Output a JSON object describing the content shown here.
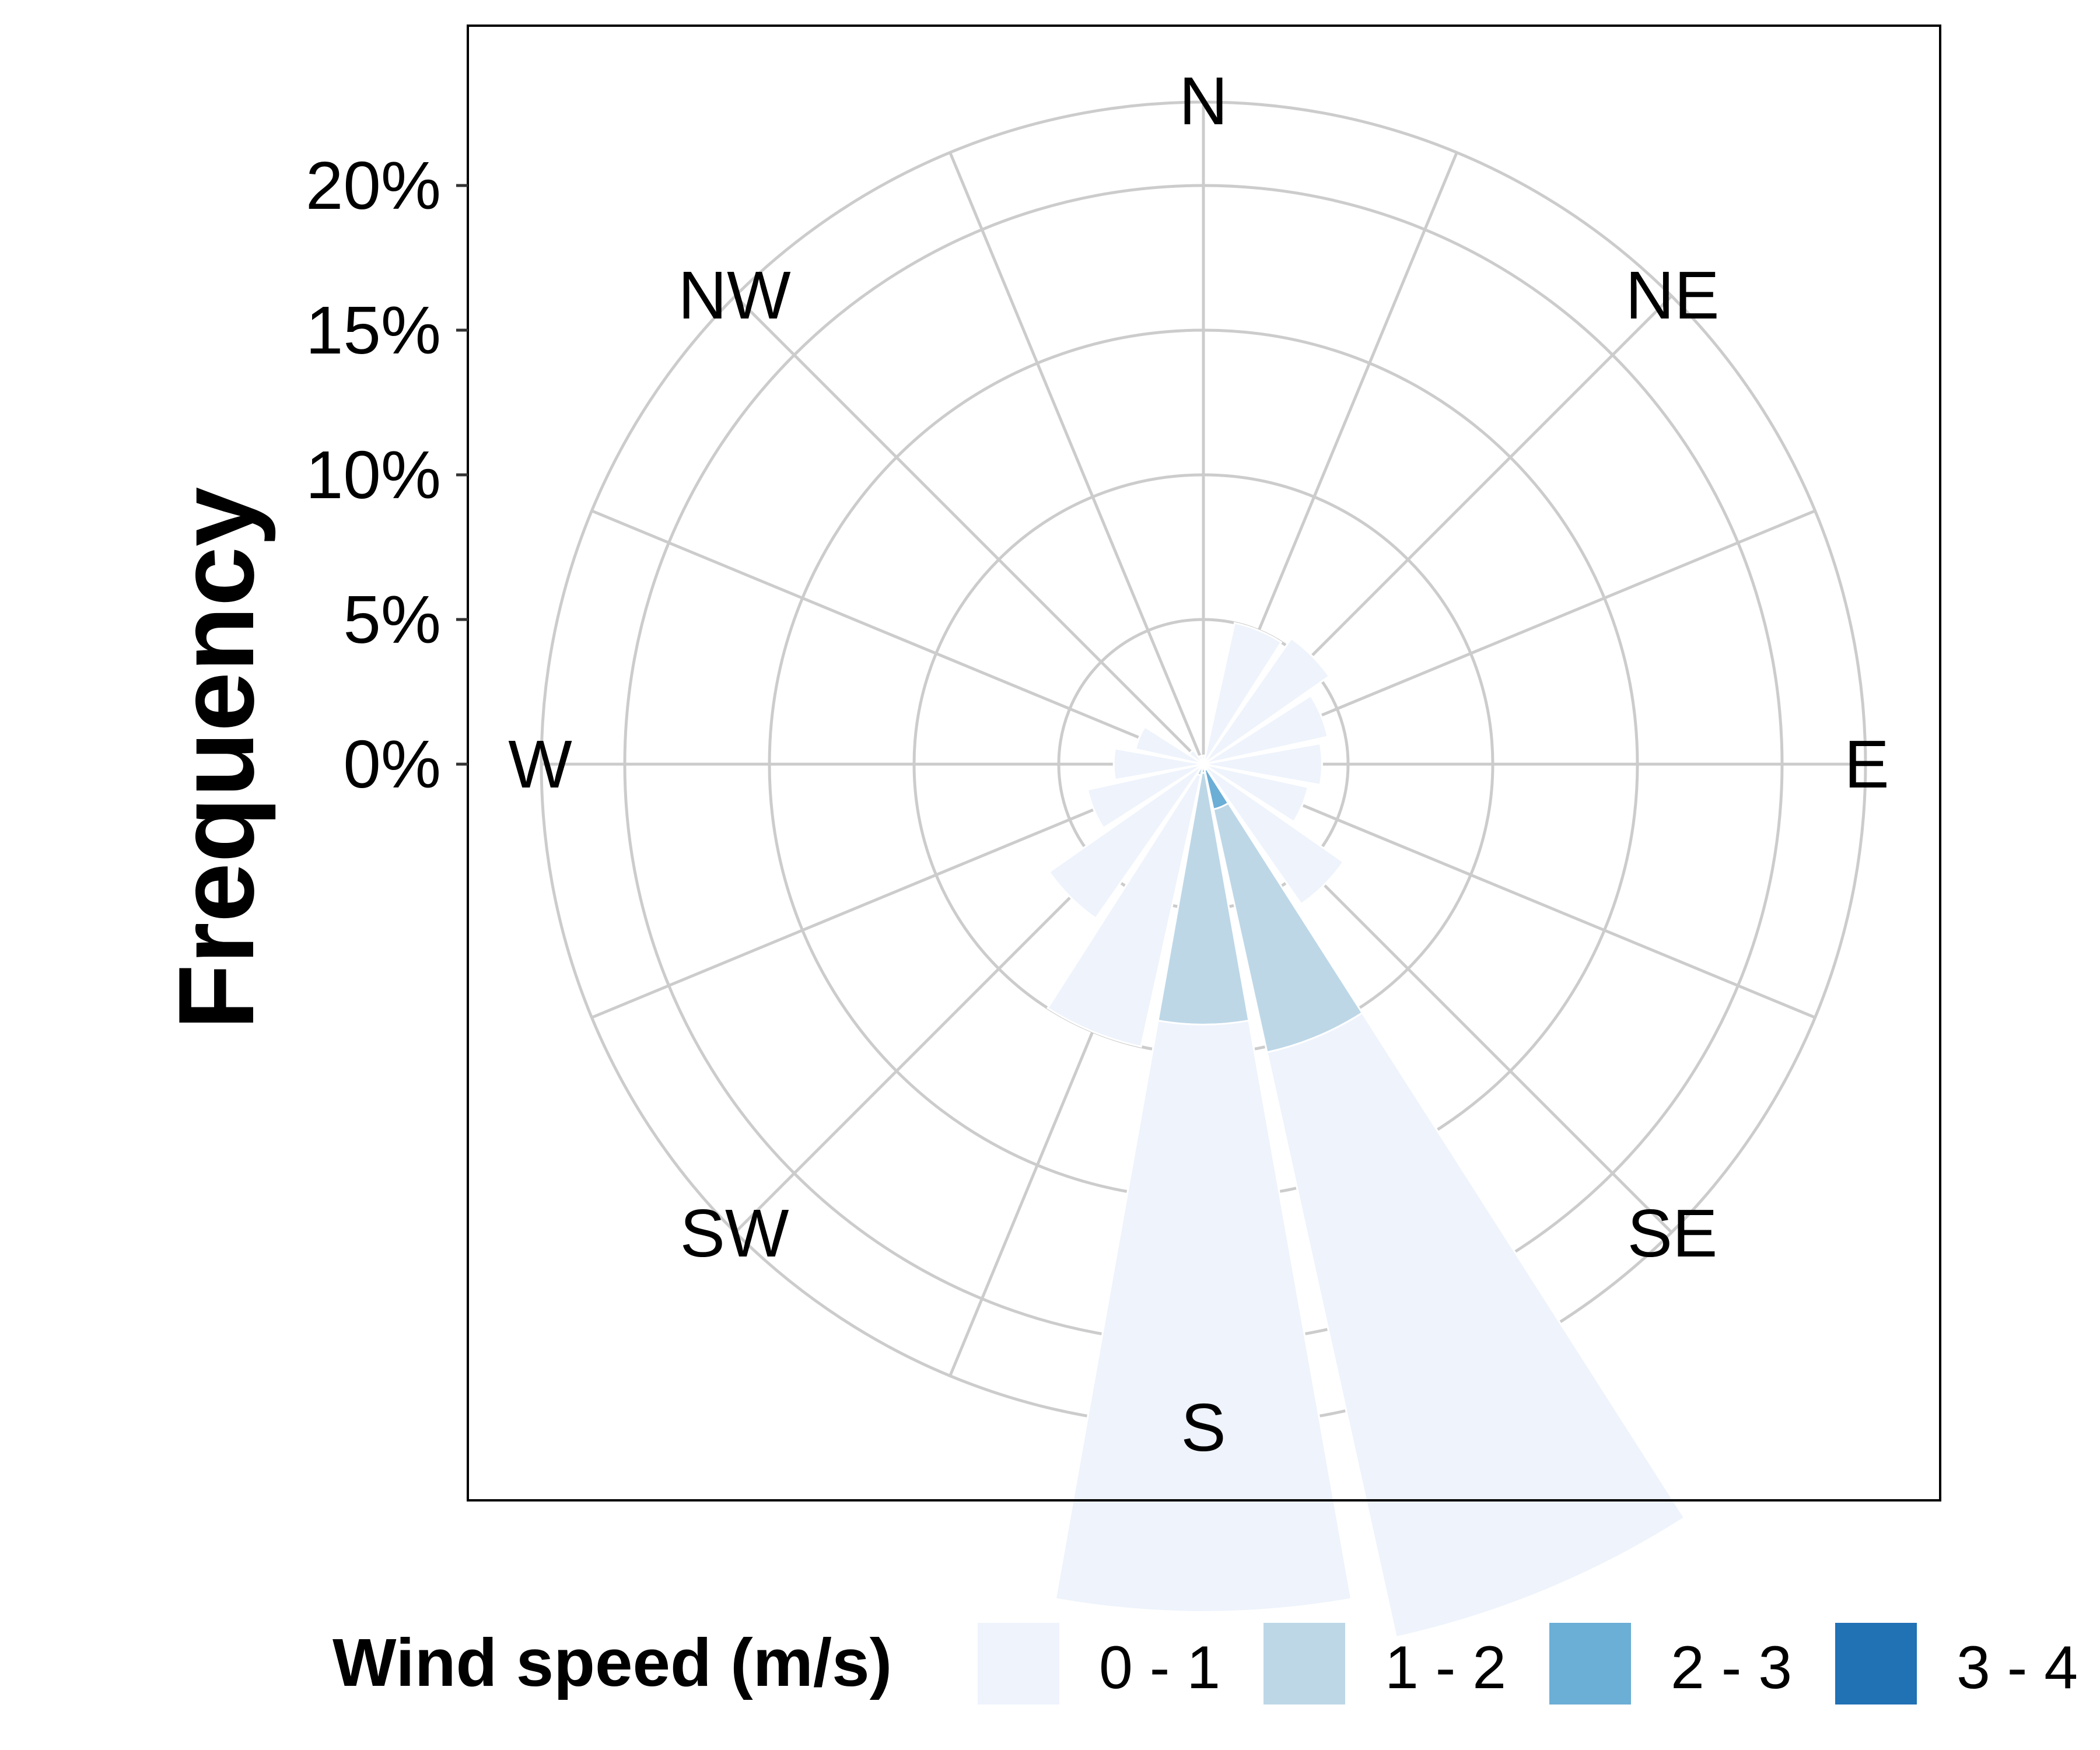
{
  "chart_data": {
    "type": "windrose",
    "ylabel": "Frequency",
    "radial_ticks": [
      "0%",
      "5%",
      "10%",
      "15%",
      "20%"
    ],
    "radial_tick_values": [
      0,
      5,
      10,
      15,
      20
    ],
    "radial_max": 23,
    "grid": true,
    "directions": [
      "N",
      "NNE",
      "NE",
      "ENE",
      "E",
      "ESE",
      "SE",
      "SSE",
      "S",
      "SSW",
      "SW",
      "WSW",
      "W",
      "WNW",
      "NW",
      "NNW"
    ],
    "direction_labels": [
      "N",
      "NE",
      "E",
      "SE",
      "S",
      "SW",
      "W",
      "NW"
    ],
    "legend": {
      "title": "Wind speed (m/s)",
      "position": "bottom",
      "entries": [
        "0 - 1",
        "1 - 2",
        "2 - 3",
        "3 - 4"
      ]
    },
    "series": [
      {
        "name": "0 - 1",
        "values": [
          0.3,
          5.0,
          5.3,
          4.4,
          4.1,
          3.7,
          5.9,
          20.7,
          20.3,
          9.6,
          6.5,
          4.1,
          3.1,
          2.4,
          0.6,
          0.3
        ]
      },
      {
        "name": "1 - 2",
        "values": [
          0,
          0,
          0,
          0,
          0,
          0,
          0,
          8.6,
          8.7,
          0.4,
          0,
          0,
          0,
          0,
          0,
          0
        ]
      },
      {
        "name": "2 - 3",
        "values": [
          0,
          0,
          0,
          0,
          0,
          0,
          0,
          1.4,
          0.3,
          0,
          0,
          0,
          0,
          0,
          0,
          0
        ]
      },
      {
        "name": "3 - 4",
        "values": [
          0,
          0,
          0,
          0,
          0,
          0,
          0,
          0.2,
          0,
          0,
          0,
          0,
          0,
          0,
          0,
          0
        ]
      }
    ],
    "colors": [
      "#eef3fc",
      "#bdd7e7",
      "#6baed6",
      "#2171b5"
    ]
  }
}
